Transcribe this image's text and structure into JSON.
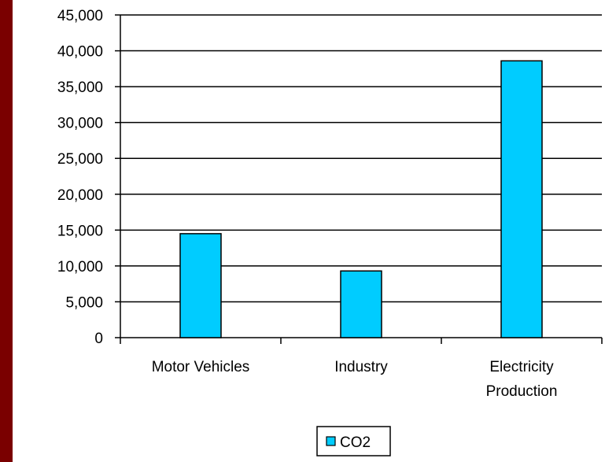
{
  "colors": {
    "side_bar": "#7a0000",
    "bar_fill": "#00ccff",
    "bar_stroke": "#000000",
    "gridline": "#000000",
    "background": "#ffffff"
  },
  "legend": {
    "placement": "bottom-center",
    "entries": [
      {
        "label": "CO2",
        "color": "#00ccff"
      }
    ]
  },
  "chart_data": {
    "type": "bar",
    "title": "",
    "xlabel": "",
    "ylabel": "",
    "categories": [
      [
        "Motor Vehicles"
      ],
      [
        "Industry"
      ],
      [
        "Electricity",
        "Production"
      ]
    ],
    "series": [
      {
        "name": "CO2",
        "values": [
          14500,
          9300,
          38600
        ]
      }
    ],
    "ylim": [
      0,
      45000
    ],
    "ytick_step": 5000,
    "ytick_labels": [
      "0",
      "5,000",
      "10,000",
      "15,000",
      "20,000",
      "25,000",
      "30,000",
      "35,000",
      "40,000",
      "45,000"
    ],
    "grid": true
  }
}
